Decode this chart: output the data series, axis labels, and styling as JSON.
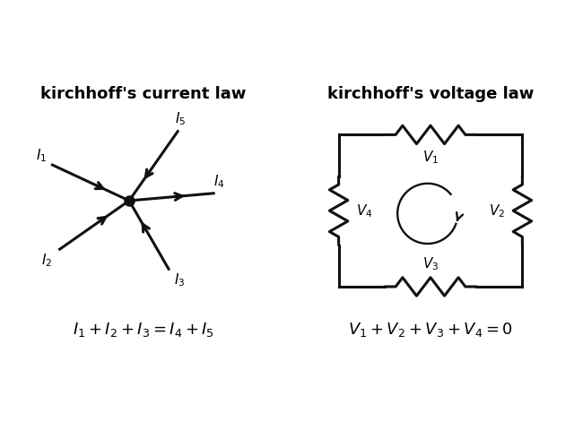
{
  "bg_color": "#ffffff",
  "kcl_title": "kirchhoff's current law",
  "kvl_title": "kirchhoff's voltage law",
  "kcl_formula": "$\\mathit{I}_1+ \\mathit{I}_2+ \\mathit{I}_3= \\mathit{I}_4+ \\mathit{I}_5$",
  "kvl_formula": "$\\mathit{V}_1 + \\mathit{V}_2 + \\mathit{V}_3 + \\mathit{V}_4 = 0$",
  "title_fontsize": 13,
  "formula_fontsize": 13,
  "label_fontsize": 11,
  "line_color": "#111111",
  "line_width": 2.2
}
